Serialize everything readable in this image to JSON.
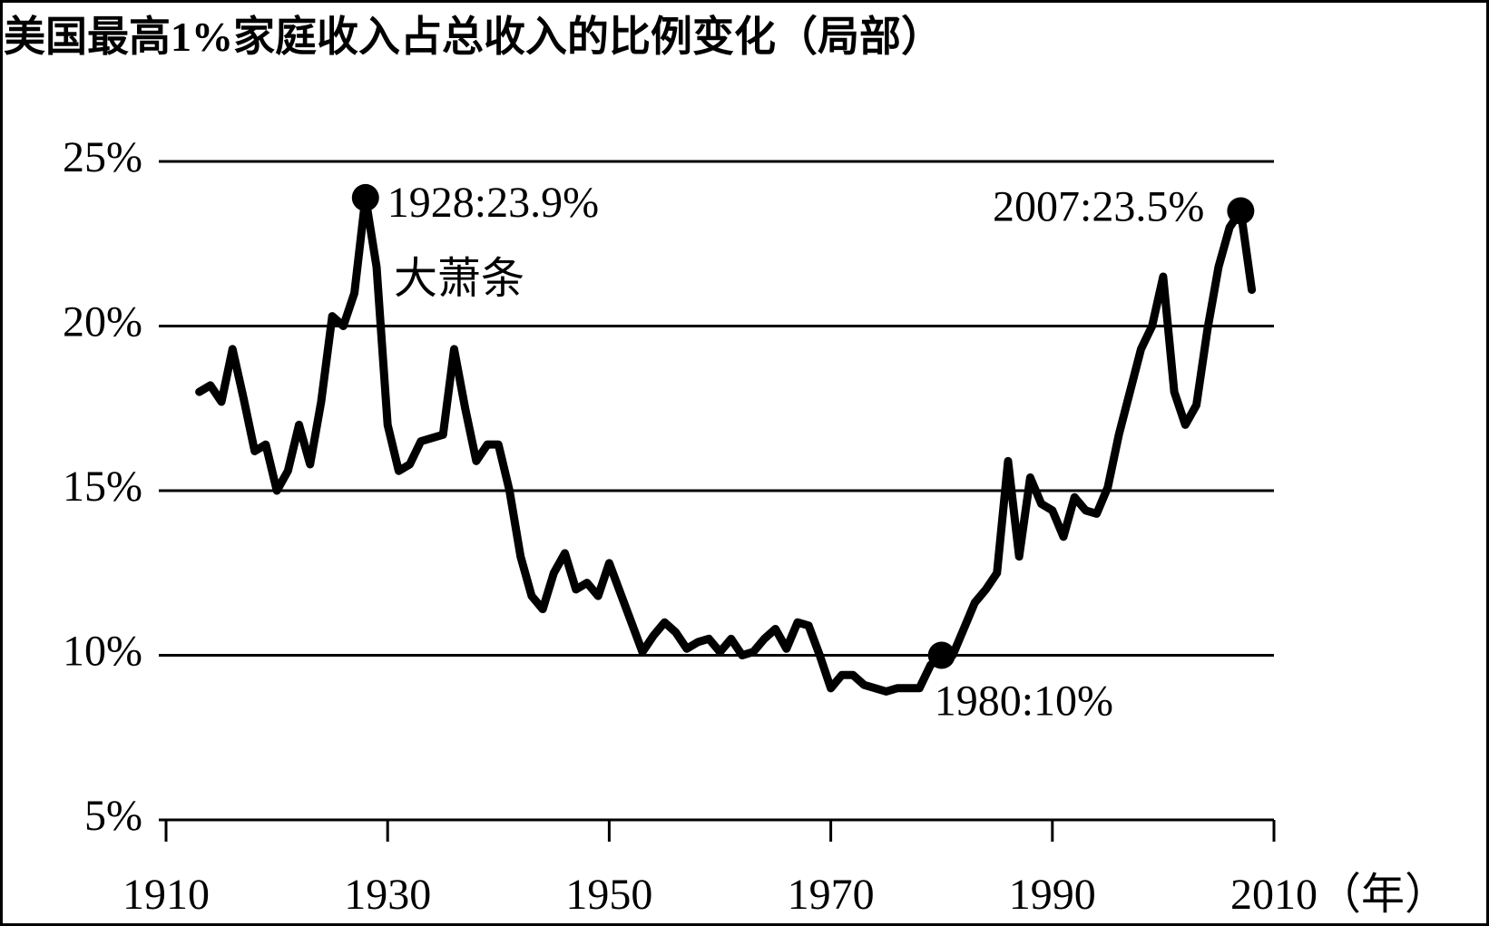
{
  "chart_data": {
    "type": "line",
    "title": "美国最高1%家庭收入占总收入的比例变化（局部）",
    "x_label": "（年）",
    "x": [
      1913,
      1914,
      1915,
      1916,
      1917,
      1918,
      1919,
      1920,
      1921,
      1922,
      1923,
      1924,
      1925,
      1926,
      1927,
      1928,
      1929,
      1930,
      1931,
      1932,
      1933,
      1934,
      1935,
      1936,
      1937,
      1938,
      1939,
      1940,
      1941,
      1942,
      1943,
      1944,
      1945,
      1946,
      1947,
      1948,
      1949,
      1950,
      1951,
      1952,
      1953,
      1954,
      1955,
      1956,
      1957,
      1958,
      1959,
      1960,
      1961,
      1962,
      1963,
      1964,
      1965,
      1966,
      1967,
      1968,
      1969,
      1970,
      1971,
      1972,
      1973,
      1974,
      1975,
      1976,
      1977,
      1978,
      1979,
      1980,
      1981,
      1982,
      1983,
      1984,
      1985,
      1986,
      1987,
      1988,
      1989,
      1990,
      1991,
      1992,
      1993,
      1994,
      1995,
      1996,
      1997,
      1998,
      1999,
      2000,
      2001,
      2002,
      2003,
      2004,
      2005,
      2006,
      2007,
      2008
    ],
    "series": [
      {
        "color": "#000000",
        "values": [
          18.0,
          18.2,
          17.7,
          19.3,
          17.8,
          16.2,
          16.4,
          15.0,
          15.6,
          17.0,
          15.8,
          17.7,
          20.3,
          20.0,
          21.0,
          23.9,
          21.8,
          17.0,
          15.6,
          15.8,
          16.5,
          16.6,
          16.7,
          19.3,
          17.5,
          15.9,
          16.4,
          16.4,
          15.0,
          13.0,
          11.8,
          11.4,
          12.5,
          13.1,
          12.0,
          12.2,
          11.8,
          12.8,
          11.9,
          11.0,
          10.1,
          10.6,
          11.0,
          10.7,
          10.2,
          10.4,
          10.5,
          10.1,
          10.5,
          10.0,
          10.1,
          10.5,
          10.8,
          10.2,
          11.0,
          10.9,
          10.0,
          9.0,
          9.4,
          9.4,
          9.1,
          9.0,
          8.9,
          9.0,
          9.0,
          9.0,
          9.7,
          10.0,
          10.0,
          10.8,
          11.6,
          12.0,
          12.5,
          15.9,
          13.0,
          15.4,
          14.6,
          14.4,
          13.6,
          14.8,
          14.4,
          14.3,
          15.1,
          16.7,
          18.0,
          19.3,
          20.0,
          21.5,
          18.0,
          17.0,
          17.6,
          19.9,
          21.8,
          23.0,
          23.5,
          21.1
        ]
      }
    ],
    "xlim": [
      1910,
      2010
    ],
    "xticks": [
      1910,
      1930,
      1950,
      1970,
      1990,
      2010
    ],
    "ylim": [
      5,
      25
    ],
    "yticks": [
      {
        "value": 5,
        "label": "5%"
      },
      {
        "value": 10,
        "label": "10%"
      },
      {
        "value": 15,
        "label": "15%"
      },
      {
        "value": 20,
        "label": "20%"
      },
      {
        "value": 25,
        "label": "25%"
      }
    ],
    "grid": true,
    "annotations": [
      {
        "label": "1928:23.9%",
        "x": 1928,
        "y": 23.9
      },
      {
        "label": "2007:23.5%",
        "x": 2007,
        "y": 23.5
      },
      {
        "label": "1980:10%",
        "x": 1980,
        "y": 10
      }
    ],
    "note": "大萧条"
  }
}
